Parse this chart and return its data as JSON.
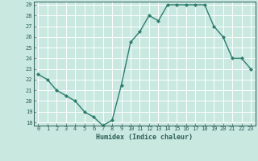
{
  "x": [
    0,
    1,
    2,
    3,
    4,
    5,
    6,
    7,
    8,
    9,
    10,
    11,
    12,
    13,
    14,
    15,
    16,
    17,
    18,
    19,
    20,
    21,
    22,
    23
  ],
  "y": [
    22.5,
    22.0,
    21.0,
    20.5,
    20.0,
    19.0,
    18.5,
    17.7,
    18.2,
    21.5,
    25.5,
    26.5,
    28.0,
    27.5,
    29.0,
    29.0,
    29.0,
    29.0,
    29.0,
    27.0,
    26.0,
    24.0,
    24.0,
    23.0
  ],
  "xlabel": "Humidex (Indice chaleur)",
  "ylim": [
    17.7,
    29.3
  ],
  "xlim": [
    -0.5,
    23.5
  ],
  "yticks": [
    18,
    19,
    20,
    21,
    22,
    23,
    24,
    25,
    26,
    27,
    28,
    29
  ],
  "xticks": [
    0,
    1,
    2,
    3,
    4,
    5,
    6,
    7,
    8,
    9,
    10,
    11,
    12,
    13,
    14,
    15,
    16,
    17,
    18,
    19,
    20,
    21,
    22,
    23
  ],
  "line_color": "#2e7d6e",
  "marker_color": "#2e7d6e",
  "bg_color": "#c8e8e0",
  "grid_color": "#ffffff",
  "tick_label_color": "#2e5e58",
  "axis_label_color": "#2e5e58"
}
